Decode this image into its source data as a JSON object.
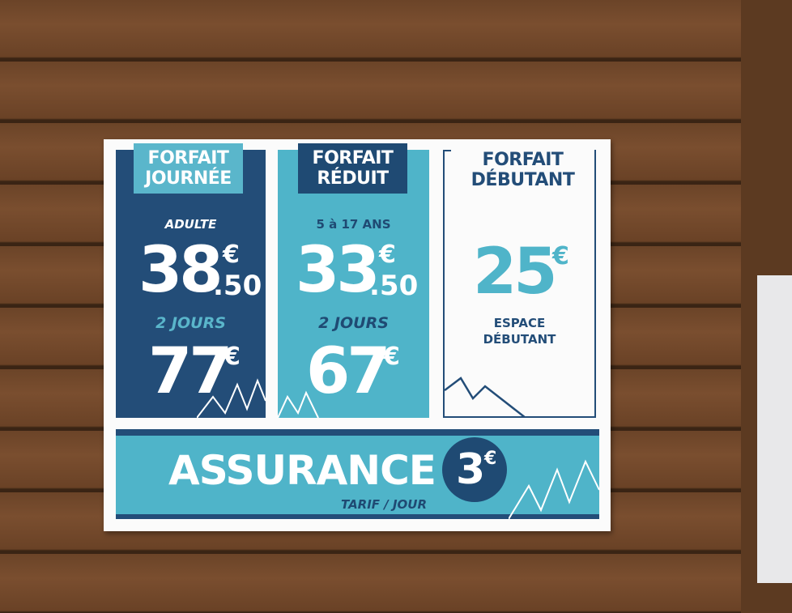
{
  "panels": [
    {
      "title": [
        "FORFAIT",
        "JOURNÉE"
      ],
      "audience": "ADULTE",
      "price": {
        "main": "38",
        "currency": "€",
        "cents": ".50"
      },
      "extra_label": "2 JOURS",
      "extra_price": {
        "main": "77",
        "currency": "€"
      }
    },
    {
      "title": [
        "FORFAIT",
        "RÉDUIT"
      ],
      "audience": "5 à 17 ANS",
      "price": {
        "main": "33",
        "currency": "€",
        "cents": ".50"
      },
      "extra_label": "2 JOURS",
      "extra_price": {
        "main": "67",
        "currency": "€"
      }
    },
    {
      "title": [
        "FORFAIT",
        "DÉBUTANT"
      ],
      "price": {
        "main": "25",
        "currency": "€"
      },
      "note": [
        "ESPACE",
        "DÉBUTANT"
      ]
    }
  ],
  "insurance": {
    "title": "ASSURANCE",
    "price": "3",
    "currency": "€",
    "note": "TARIF / JOUR"
  }
}
